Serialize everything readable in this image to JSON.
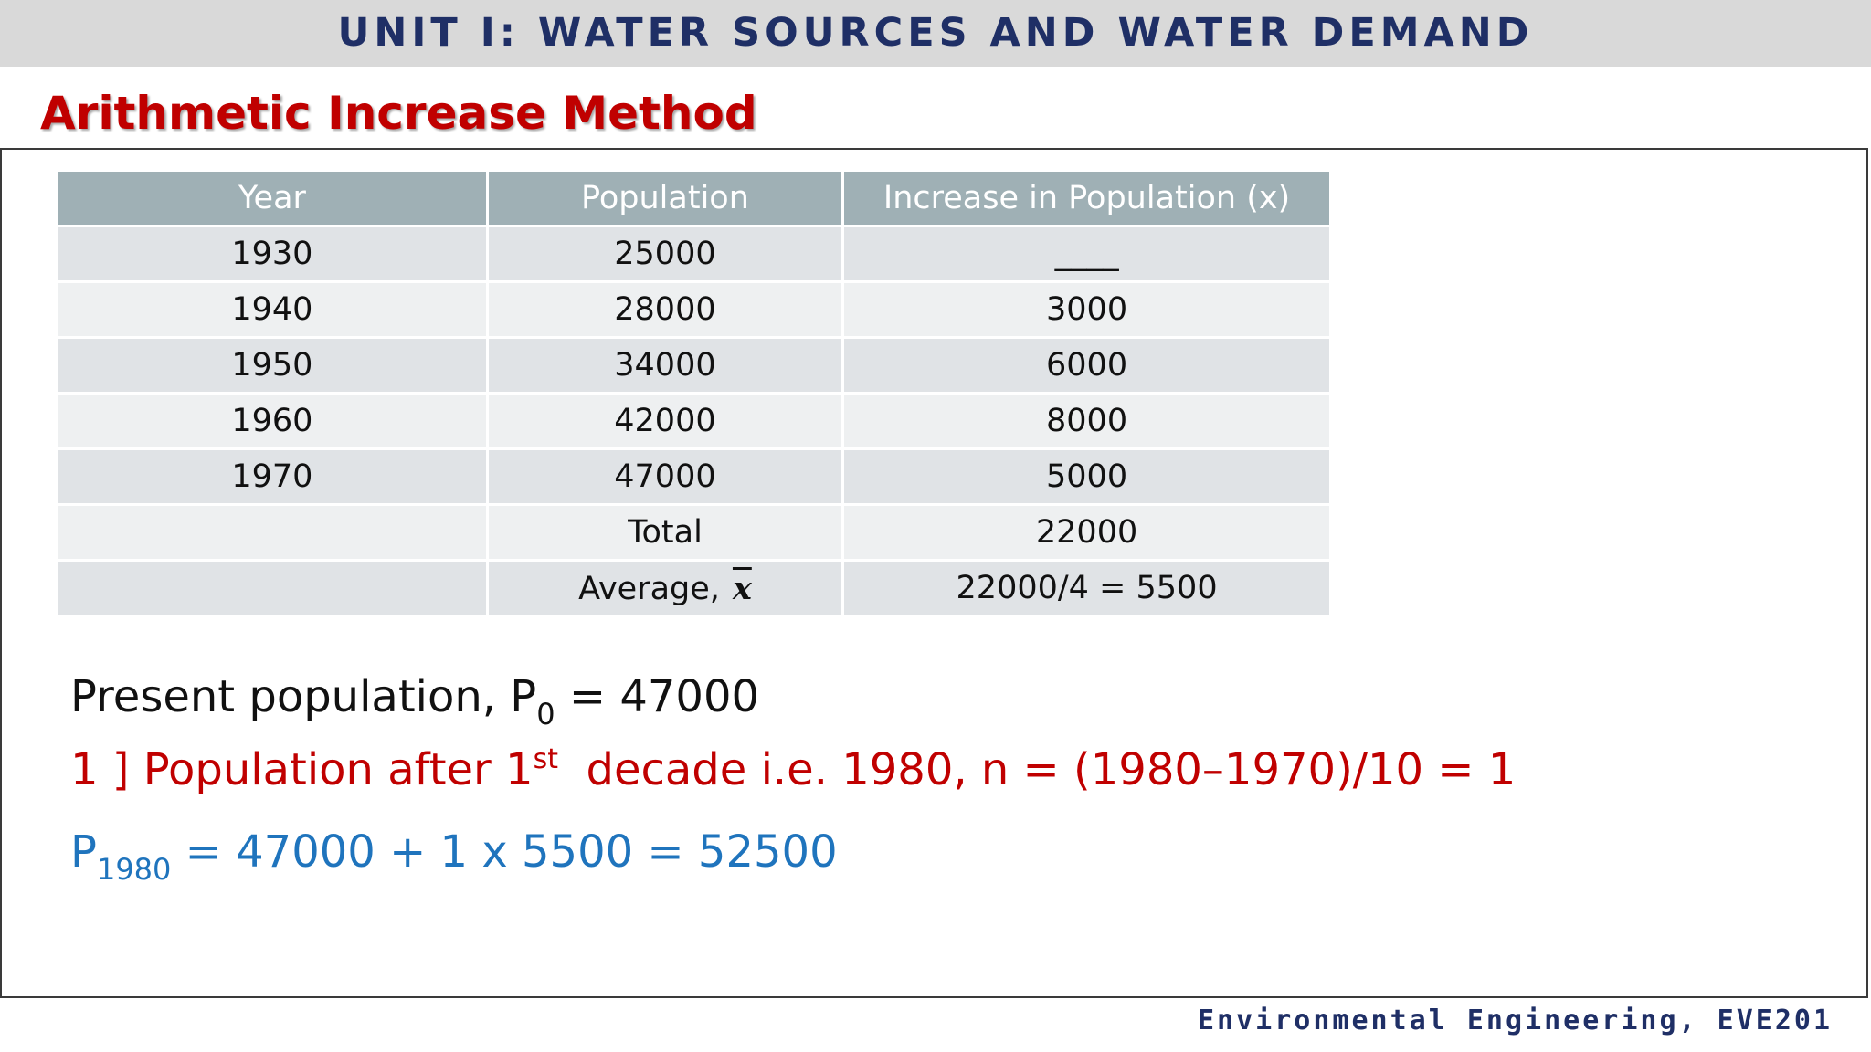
{
  "header": {
    "unit_title": "UNIT I: WATER SOURCES AND WATER DEMAND"
  },
  "slide": {
    "title": "Arithmetic Increase Method"
  },
  "table": {
    "columns": [
      "Year",
      "Population",
      "Increase in Population (x)"
    ],
    "rows": [
      [
        "1930",
        "25000",
        "____"
      ],
      [
        "1940",
        "28000",
        "3000"
      ],
      [
        "1950",
        "34000",
        "6000"
      ],
      [
        "1960",
        "42000",
        "8000"
      ],
      [
        "1970",
        "47000",
        "5000"
      ],
      [
        "",
        "Total",
        "22000"
      ],
      [
        "",
        "Average,",
        "22000/4 = 5500"
      ]
    ],
    "average_symbol": "x"
  },
  "present": {
    "label": "Present population, P",
    "subscript": "0",
    "value": " = 47000"
  },
  "decade": {
    "prefix": "1 ] Population after 1",
    "superscript": "st",
    "rest": "  decade i.e. 1980, n = (1980–1970)/10 = 1"
  },
  "result": {
    "label": "P",
    "subscript": "1980",
    "equation": " = 47000 + 1 x 5500 = 52500"
  },
  "footer": {
    "course": "Environmental Engineering, EVE201"
  },
  "colors": {
    "title_red": "#c00000",
    "navy": "#1f2f66",
    "blue": "#1f74bd",
    "header_gray": "#9fb0b5"
  }
}
